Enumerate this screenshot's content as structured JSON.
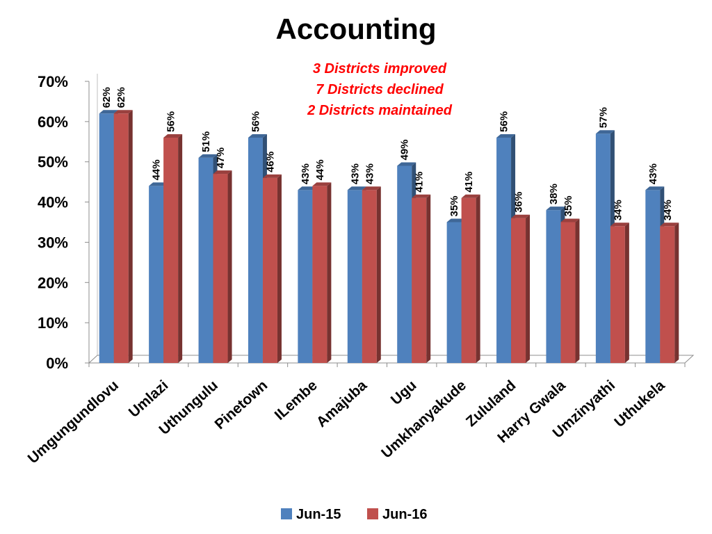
{
  "chart_data": {
    "type": "bar",
    "title": "Accounting",
    "annotations": [
      "3 Districts improved",
      "7 Districts declined",
      "2 Districts maintained"
    ],
    "annotation_color": "#ff0000",
    "categories": [
      "Umgungundlovu",
      "Umlazi",
      "Uthungulu",
      "Pinetown",
      "ILembe",
      "Amajuba",
      "Ugu",
      "Umkhanyakude",
      "Zululand",
      "Harry Gwala",
      "Umzinyathi",
      "Uthukela"
    ],
    "series": [
      {
        "name": "Jun-15",
        "color": "#4f81bd",
        "values": [
          62,
          44,
          51,
          56,
          43,
          43,
          49,
          35,
          56,
          38,
          57,
          43
        ]
      },
      {
        "name": "Jun-16",
        "color": "#c0504d",
        "values": [
          62,
          56,
          47,
          46,
          44,
          43,
          41,
          41,
          36,
          35,
          34,
          34
        ]
      }
    ],
    "ylim": [
      0,
      70
    ],
    "yticks": [
      0,
      10,
      20,
      30,
      40,
      50,
      60,
      70
    ],
    "y_tick_format": "%",
    "grid": false,
    "legend_position": "bottom"
  }
}
